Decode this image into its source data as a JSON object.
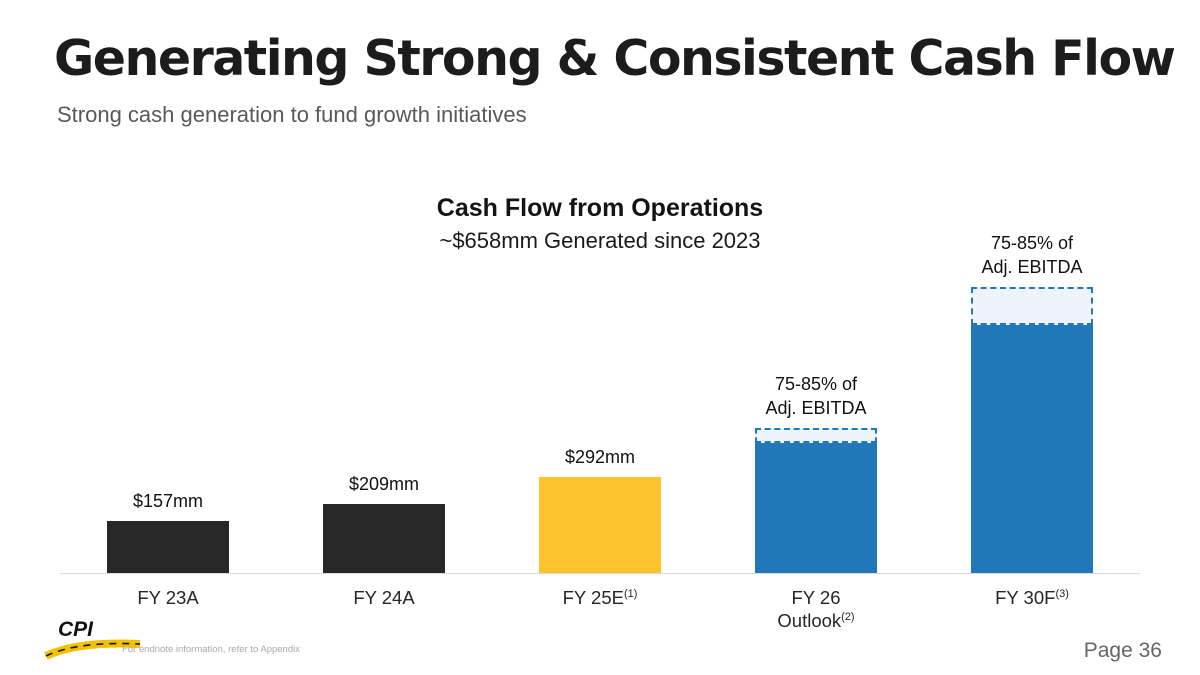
{
  "slide": {
    "title": "Generating Strong & Consistent Cash Flow",
    "subtitle": "Strong cash generation to fund growth initiatives",
    "footer": {
      "logo_text": "CPI",
      "endnote": "For endnote information, refer to Appendix",
      "page_label": "Page 36"
    }
  },
  "chart_data": {
    "type": "bar",
    "title": "Cash Flow from Operations",
    "subtitle": "~$658mm Generated since 2023",
    "unit": "$mm",
    "ylim": [
      0,
      1040
    ],
    "grid": false,
    "legend_position": "none",
    "colors": {
      "actual": "#282828",
      "estimate": "#FCC32D",
      "outlook": "#2277B8",
      "outlook_range_fill": "#EDF3FA"
    },
    "bars": [
      {
        "cat_line1": "FY 23A",
        "cat_sup1": "",
        "cat_line2": "",
        "cat_sup2": "",
        "label_line1": "$157mm",
        "label_line2": "",
        "value": 157,
        "estimated": false,
        "color": "#282828",
        "cap": null
      },
      {
        "cat_line1": "FY 24A",
        "cat_sup1": "",
        "cat_line2": "",
        "cat_sup2": "",
        "label_line1": "$209mm",
        "label_line2": "",
        "value": 209,
        "estimated": false,
        "color": "#282828",
        "cap": null
      },
      {
        "cat_line1": "FY 25E",
        "cat_sup1": "(1)",
        "cat_line2": "",
        "cat_sup2": "",
        "label_line1": "$292mm",
        "label_line2": "",
        "value": 292,
        "estimated": false,
        "color": "#FCC32D",
        "cap": null
      },
      {
        "cat_line1": "FY 26",
        "cat_sup1": "",
        "cat_line2": "Outlook",
        "cat_sup2": "(2)",
        "label_line1": "75-85% of",
        "label_line2": "Adj. EBITDA",
        "value": 395,
        "estimated": true,
        "color": "#2277B8",
        "cap": {
          "value": 45,
          "style": "dashed",
          "note": "75-85% of Adj. EBITDA range"
        }
      },
      {
        "cat_line1": "FY 30F",
        "cat_sup1": "(3)",
        "cat_line2": "",
        "cat_sup2": "",
        "label_line1": "75-85% of",
        "label_line2": "Adj. EBITDA",
        "value": 750,
        "estimated": true,
        "color": "#2277B8",
        "cap": {
          "value": 115,
          "style": "dashed",
          "note": "75-85% of Adj. EBITDA range"
        }
      }
    ]
  }
}
